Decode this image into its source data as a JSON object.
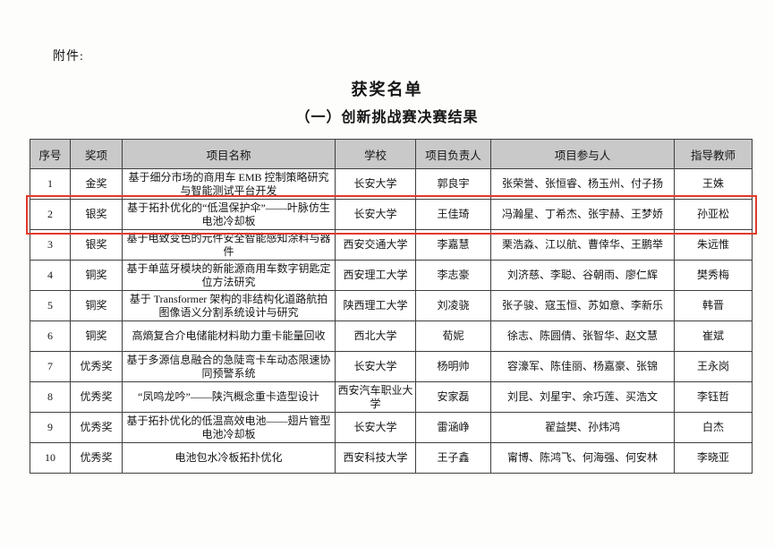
{
  "document": {
    "attachment_label": "附件:",
    "title": "获奖名单",
    "subtitle": "（一）创新挑战赛决赛结果"
  },
  "table": {
    "headers": [
      "序号",
      "奖项",
      "项目名称",
      "学校",
      "项目负责人",
      "项目参与人",
      "指导教师"
    ],
    "rows": [
      {
        "no": "1",
        "award": "金奖",
        "project": "基于细分市场的商用车 EMB 控制策略研究与智能测试平台开发",
        "school": "长安大学",
        "leader": "郭良宇",
        "members": "张荣誉、张恒睿、杨玉州、付子扬",
        "advisor": "王姝",
        "highlighted": false
      },
      {
        "no": "2",
        "award": "银奖",
        "project": "基于拓扑优化的“低温保护伞”——叶脉仿生电池冷却板",
        "school": "长安大学",
        "leader": "王佳琦",
        "members": "冯瀚星、丁希杰、张宇赫、王梦娇",
        "advisor": "孙亚松",
        "highlighted": true
      },
      {
        "no": "3",
        "award": "银奖",
        "project": "基于电致变色的元件安全智能感知涂料与器件",
        "school": "西安交通大学",
        "leader": "李嘉慧",
        "members": "栗浩淼、江以航、曹倖华、王鹏举",
        "advisor": "朱远惟",
        "highlighted": false
      },
      {
        "no": "4",
        "award": "铜奖",
        "project": "基于单蓝牙模块的新能源商用车数字钥匙定位方法研究",
        "school": "西安理工大学",
        "leader": "李志豪",
        "members": "刘济慈、李聪、谷朝雨、廖仁辉",
        "advisor": "樊秀梅",
        "highlighted": false
      },
      {
        "no": "5",
        "award": "铜奖",
        "project": "基于 Transformer 架构的非结构化道路航拍图像语义分割系统设计与研究",
        "school": "陕西理工大学",
        "leader": "刘凌骁",
        "members": "张子骏、寇玉恒、苏如意、李新乐",
        "advisor": "韩晋",
        "highlighted": false
      },
      {
        "no": "6",
        "award": "铜奖",
        "project": "高熵复合介电储能材料助力重卡能量回收",
        "school": "西北大学",
        "leader": "荀妮",
        "members": "徐志、陈圆倩、张智华、赵文慧",
        "advisor": "崔斌",
        "highlighted": false
      },
      {
        "no": "7",
        "award": "优秀奖",
        "project": "基于多源信息融合的急陡弯卡车动态限速协同预警系统",
        "school": "长安大学",
        "leader": "杨明帅",
        "members": "容濠军、陈佳丽、杨嘉豪、张锦",
        "advisor": "王永岗",
        "highlighted": false
      },
      {
        "no": "8",
        "award": "优秀奖",
        "project": "“凤鸣龙吟”——陕汽概念重卡造型设计",
        "school": "西安汽车职业大学",
        "leader": "安家磊",
        "members": "刘昆、刘星宇、余巧莲、买浩文",
        "advisor": "李钰哲",
        "highlighted": false
      },
      {
        "no": "9",
        "award": "优秀奖",
        "project": "基于拓扑优化的低温高效电池——翅片管型电池冷却板",
        "school": "长安大学",
        "leader": "雷涵峥",
        "members": "翟益樊、孙炜鸿",
        "advisor": "白杰",
        "highlighted": false
      },
      {
        "no": "10",
        "award": "优秀奖",
        "project": "电池包水冷板拓扑优化",
        "school": "西安科技大学",
        "leader": "王子鑫",
        "members": "甯博、陈鸿飞、何海强、何安林",
        "advisor": "李晓亚",
        "highlighted": false
      }
    ]
  },
  "colors": {
    "highlight_border": "#e23a2b",
    "header_background": "#c9c9c9",
    "table_border": "#3f3f3f"
  }
}
